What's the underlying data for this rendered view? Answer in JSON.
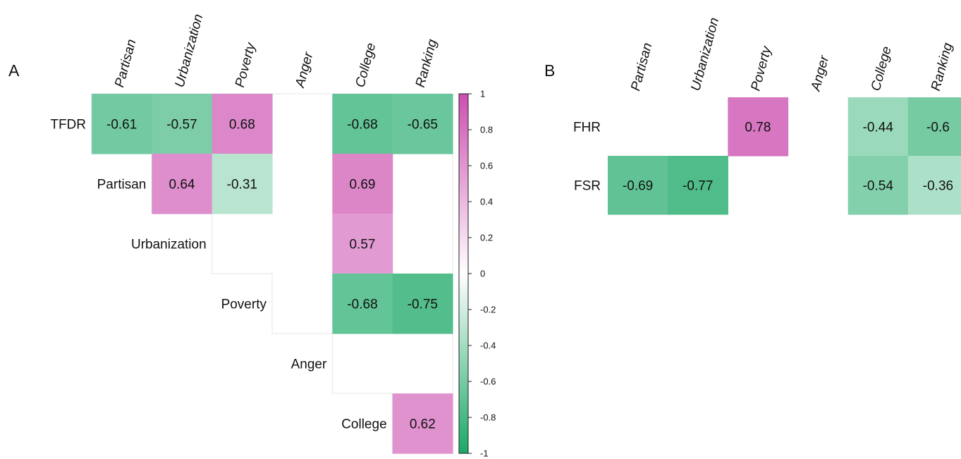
{
  "chart_data": [
    {
      "type": "heatmap",
      "panel": "A",
      "columns": [
        "Partisan",
        "Urbanization",
        "Poverty",
        "Anger",
        "College",
        "Ranking"
      ],
      "rows": [
        {
          "label": "TFDR",
          "values": [
            -0.61,
            -0.57,
            0.68,
            null,
            -0.68,
            -0.65
          ]
        },
        {
          "label": "Partisan",
          "values": [
            null,
            0.64,
            -0.31,
            null,
            0.69,
            null
          ]
        },
        {
          "label": "Urbanization",
          "values": [
            null,
            null,
            null,
            null,
            0.57,
            null
          ]
        },
        {
          "label": "Poverty",
          "values": [
            null,
            null,
            null,
            null,
            -0.68,
            -0.75
          ]
        },
        {
          "label": "Anger",
          "values": [
            null,
            null,
            null,
            null,
            null,
            null
          ]
        },
        {
          "label": "College",
          "values": [
            null,
            null,
            null,
            null,
            null,
            0.62
          ]
        }
      ],
      "colorbar": {
        "range": [
          -1,
          1
        ],
        "ticks": [
          "1",
          "0.8",
          "0.6",
          "0.4",
          "0.2",
          "0",
          "-0.2",
          "-0.4",
          "-0.6",
          "-0.8",
          "-1"
        ],
        "colors": {
          "negative": "#1aa866",
          "zero": "#ffffff",
          "positive": "#cc4fb0"
        }
      }
    },
    {
      "type": "heatmap",
      "panel": "B",
      "columns": [
        "Partisan",
        "Urbanization",
        "Poverty",
        "Anger",
        "College",
        "Ranking"
      ],
      "rows": [
        {
          "label": "FHR",
          "values": [
            null,
            null,
            0.78,
            null,
            -0.44,
            -0.6
          ]
        },
        {
          "label": "FSR",
          "values": [
            -0.69,
            -0.77,
            null,
            null,
            -0.54,
            -0.36
          ]
        }
      ]
    }
  ]
}
